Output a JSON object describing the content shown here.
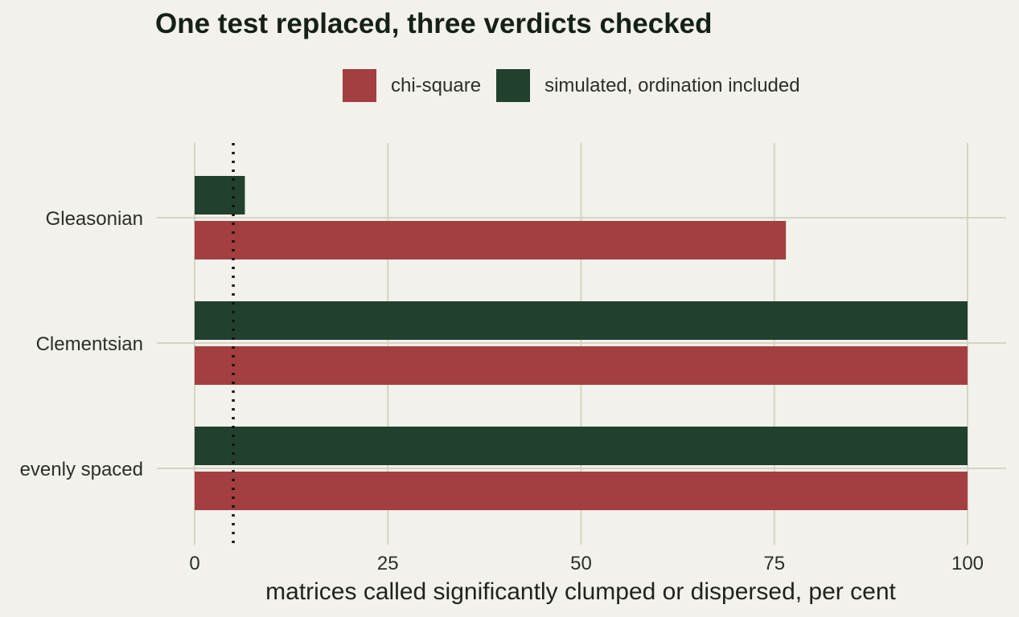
{
  "chart_data": {
    "type": "bar",
    "orientation": "horizontal",
    "title": "One test replaced, three verdicts checked",
    "xlabel": "matrices called significantly clumped or dispersed, per cent",
    "ylabel": "",
    "categories": [
      "Gleasonian",
      "Clementsian",
      "evenly spaced"
    ],
    "series": [
      {
        "name": "chi-square",
        "color": "#a33f40",
        "values": [
          76.5,
          100,
          100
        ]
      },
      {
        "name": "simulated, ordination included",
        "color": "#21412e",
        "values": [
          6.5,
          100,
          100
        ]
      }
    ],
    "xlim": [
      0,
      100
    ],
    "xticks": [
      "0",
      "25",
      "50",
      "75",
      "100"
    ],
    "reference_line": {
      "x": 5,
      "style": "dotted"
    },
    "grid": true,
    "legend_position": "top"
  }
}
